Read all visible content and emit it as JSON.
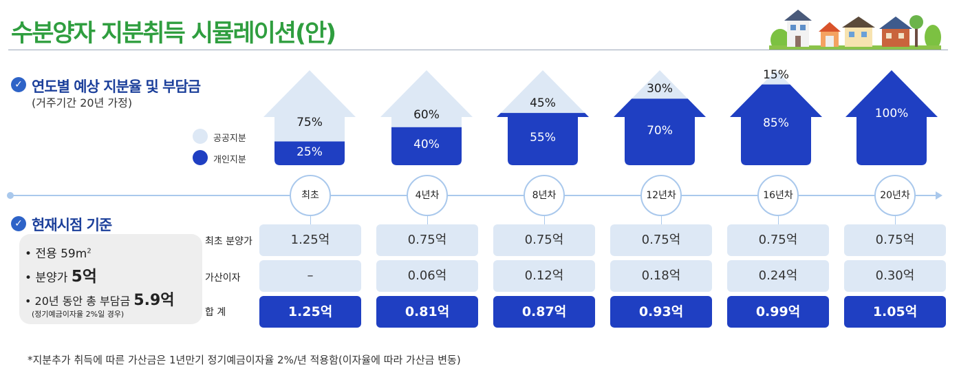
{
  "title": "수분양자 지분취득 시뮬레이션(안)",
  "section1": {
    "title": "연도별 예상 지분율 및 부담금",
    "subtitle": "(거주기간 20년 가정)"
  },
  "legend": {
    "public_label": "공공지분",
    "private_label": "개인지분",
    "public_color": "#dde8f5",
    "private_color": "#1f3fc2"
  },
  "timeline": [
    {
      "label": "최초",
      "public_share": "75%",
      "private_share": "25%",
      "public_pct": 75,
      "private_pct": 25
    },
    {
      "label": "4년차",
      "public_share": "60%",
      "private_share": "40%",
      "public_pct": 60,
      "private_pct": 40
    },
    {
      "label": "8년차",
      "public_share": "45%",
      "private_share": "55%",
      "public_pct": 45,
      "private_pct": 55
    },
    {
      "label": "12년차",
      "public_share": "30%",
      "private_share": "70%",
      "public_pct": 30,
      "private_pct": 70
    },
    {
      "label": "16년차",
      "public_share": "15%",
      "private_share": "85%",
      "public_pct": 15,
      "private_pct": 85
    },
    {
      "label": "20년차",
      "public_share": "",
      "private_share": "100%",
      "public_pct": 0,
      "private_pct": 100
    }
  ],
  "section2": {
    "title": "현재시점 기준",
    "info": {
      "area_prefix": "전용 59m",
      "area_sup": "2",
      "price_prefix": "분양가 ",
      "price_value": "5억",
      "burden_prefix": "20년 동안 총 부담금 ",
      "burden_value": "5.9억",
      "note": "(정기예금이자율 2%일 경우)"
    }
  },
  "table": {
    "row_labels": {
      "initial": "최초 분양가",
      "interest": "가산이자",
      "total": "합 계"
    },
    "initial": [
      "1.25억",
      "0.75억",
      "0.75억",
      "0.75억",
      "0.75억",
      "0.75억"
    ],
    "interest": [
      "–",
      "0.06억",
      "0.12억",
      "0.18억",
      "0.24억",
      "0.30억"
    ],
    "total": [
      "1.25억",
      "0.81억",
      "0.87억",
      "0.93억",
      "0.99억",
      "1.05억"
    ]
  },
  "footnote": "*지분추가 취득에 따른 가산금은 1년만기 정기예금이자율  2%/년 적용함(이자율에 따라 가산금 변동)"
}
